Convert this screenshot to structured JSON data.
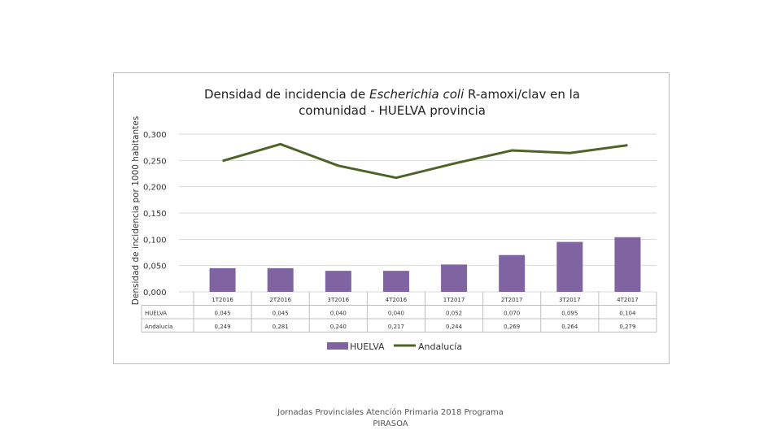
{
  "chart_data": {
    "type": "bar",
    "title_line1_pre": "Densidad de incidencia de ",
    "title_line1_italic": "Escherichia coli",
    "title_line1_post": " R-amoxi/clav en la",
    "title_line2": "comunidad - HUELVA provincia",
    "ylabel": "Densidad de incidencia por 1000 habitantes",
    "ylim": [
      0,
      0.3
    ],
    "yticks": [
      "0,000",
      "0,050",
      "0,100",
      "0,150",
      "0,200",
      "0,250",
      "0,300"
    ],
    "categories": [
      "1T2016",
      "2T2016",
      "3T2016",
      "4T2016",
      "1T2017",
      "2T2017",
      "3T2017",
      "4T2017"
    ],
    "series": [
      {
        "name": "HUELVA",
        "kind": "bar",
        "color": "#8064a2",
        "values": [
          0.045,
          0.045,
          0.04,
          0.04,
          0.052,
          0.07,
          0.095,
          0.104
        ],
        "labels": [
          "0,045",
          "0,045",
          "0,040",
          "0,040",
          "0,052",
          "0,070",
          "0,095",
          "0,104"
        ]
      },
      {
        "name": "Andalucía",
        "table_name": "Andalucía",
        "kind": "line",
        "color": "#4f6228",
        "values": [
          0.249,
          0.281,
          0.24,
          0.217,
          0.244,
          0.269,
          0.264,
          0.279
        ],
        "labels": [
          "0,249",
          "0,281",
          "0,240",
          "0,217",
          "0,244",
          "0,269",
          "0,264",
          "0,279"
        ]
      }
    ],
    "legend_position": "bottom",
    "grid": true,
    "data_table": true
  },
  "footer": {
    "line1": "Jornadas Provinciales Atención Primaria 2018 Programa",
    "line2": "PIRASOA"
  }
}
